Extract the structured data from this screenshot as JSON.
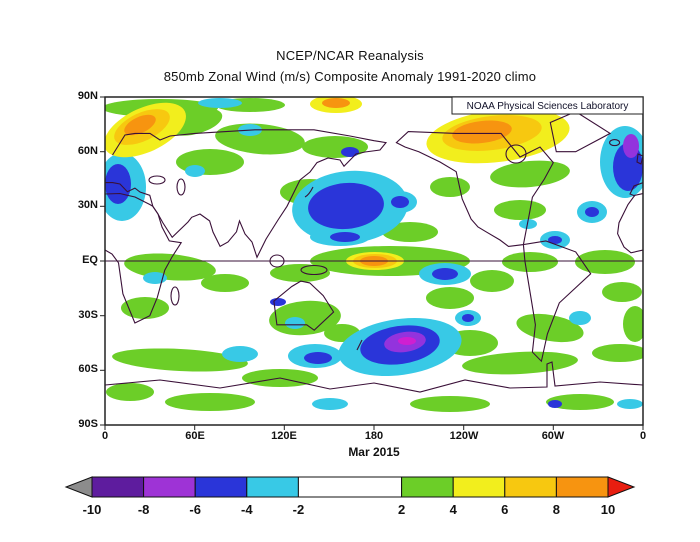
{
  "header": {
    "title": "NCEP/NCAR Reanalysis",
    "subtitle": "850mb Zonal Wind (m/s) Composite Anomaly 1991-2020 climo"
  },
  "map": {
    "source_label": "NOAA Physical Sciences Laboratory",
    "date_label": "Mar 2015",
    "lat_labels": [
      "90N",
      "60N",
      "30N",
      "EQ",
      "30S",
      "60S",
      "90S"
    ],
    "lon_labels": [
      "0",
      "60E",
      "120E",
      "180",
      "120W",
      "60W",
      "0"
    ]
  },
  "colorbar": {
    "labels": [
      "-10",
      "-8",
      "-6",
      "-4",
      "-2",
      "2",
      "4",
      "6",
      "8",
      "10"
    ],
    "segments": [
      {
        "range": "< -10",
        "color": "#8c8c8c"
      },
      {
        "range": "-10..-8",
        "color": "#5e1c9e"
      },
      {
        "range": "-8..-6",
        "color": "#9e33d6"
      },
      {
        "range": "-6..-4",
        "color": "#2a35d9"
      },
      {
        "range": "-4..-2",
        "color": "#38c9e6"
      },
      {
        "range": "-2..2",
        "color": "#ffffff"
      },
      {
        "range": "2..4",
        "color": "#6cce28"
      },
      {
        "range": "4..6",
        "color": "#f2ee1d"
      },
      {
        "range": "6..8",
        "color": "#f7c810"
      },
      {
        "range": "8..10",
        "color": "#f79410"
      },
      {
        "range": "> 10",
        "color": "#e81e10"
      }
    ]
  },
  "chart_data": {
    "type": "heatmap",
    "title": "NCEP/NCAR Reanalysis",
    "subtitle": "850mb Zonal Wind (m/s) Composite Anomaly 1991-2020 climo",
    "variable": "850mb zonal wind composite anomaly",
    "units": "m/s",
    "period": "Mar 2015",
    "climatology_base": "1991-2020",
    "source_label": "NOAA Physical Sciences Laboratory",
    "projection": "equirectangular world map, longitude 0 to 360E left to right, latitude 90N to 90S top to bottom",
    "lat_ticks": [
      "90N",
      "60N",
      "30N",
      "EQ",
      "30S",
      "60S",
      "90S"
    ],
    "lon_ticks": [
      "0",
      "60E",
      "120E",
      "180",
      "120W",
      "60W",
      "0"
    ],
    "colorbar_levels": [
      -10,
      -8,
      -6,
      -4,
      -2,
      2,
      4,
      6,
      8,
      10
    ],
    "colorbar_colors": [
      "#8c8c8c",
      "#5e1c9e",
      "#9e33d6",
      "#2a35d9",
      "#38c9e6",
      "#ffffff",
      "#6cce28",
      "#f2ee1d",
      "#f7c810",
      "#f79410",
      "#e81e10"
    ],
    "notable_features": [
      "Strong positive (westerly) anomaly, +6 to +10 m/s core, on the equator near the Dateline (180) - El Nino westerly wind anomaly",
      "Strong positive anomalies +6 to +10 m/s over the Canadian Arctic / Greenland sector and over the Norwegian Sea / Scandinavia",
      "Negative anomalies -4 to -8 m/s over the central North Pacific around 30-45N",
      "Strong negative anomaly reaching below -8 m/s (purple core) in the South Pacific near 45-55S, 180-150W",
      "Negative (blue/purple) anomalies near the northeast North Atlantic at the right map edge around 40-70N",
      "Widespread weak positive anomalies of 2-4 m/s (green) across the tropics, Southern Ocean and around Antarctica",
      "Weak negative cyan patches scattered over the Indian Ocean, south of Australia and the South Atlantic"
    ]
  }
}
